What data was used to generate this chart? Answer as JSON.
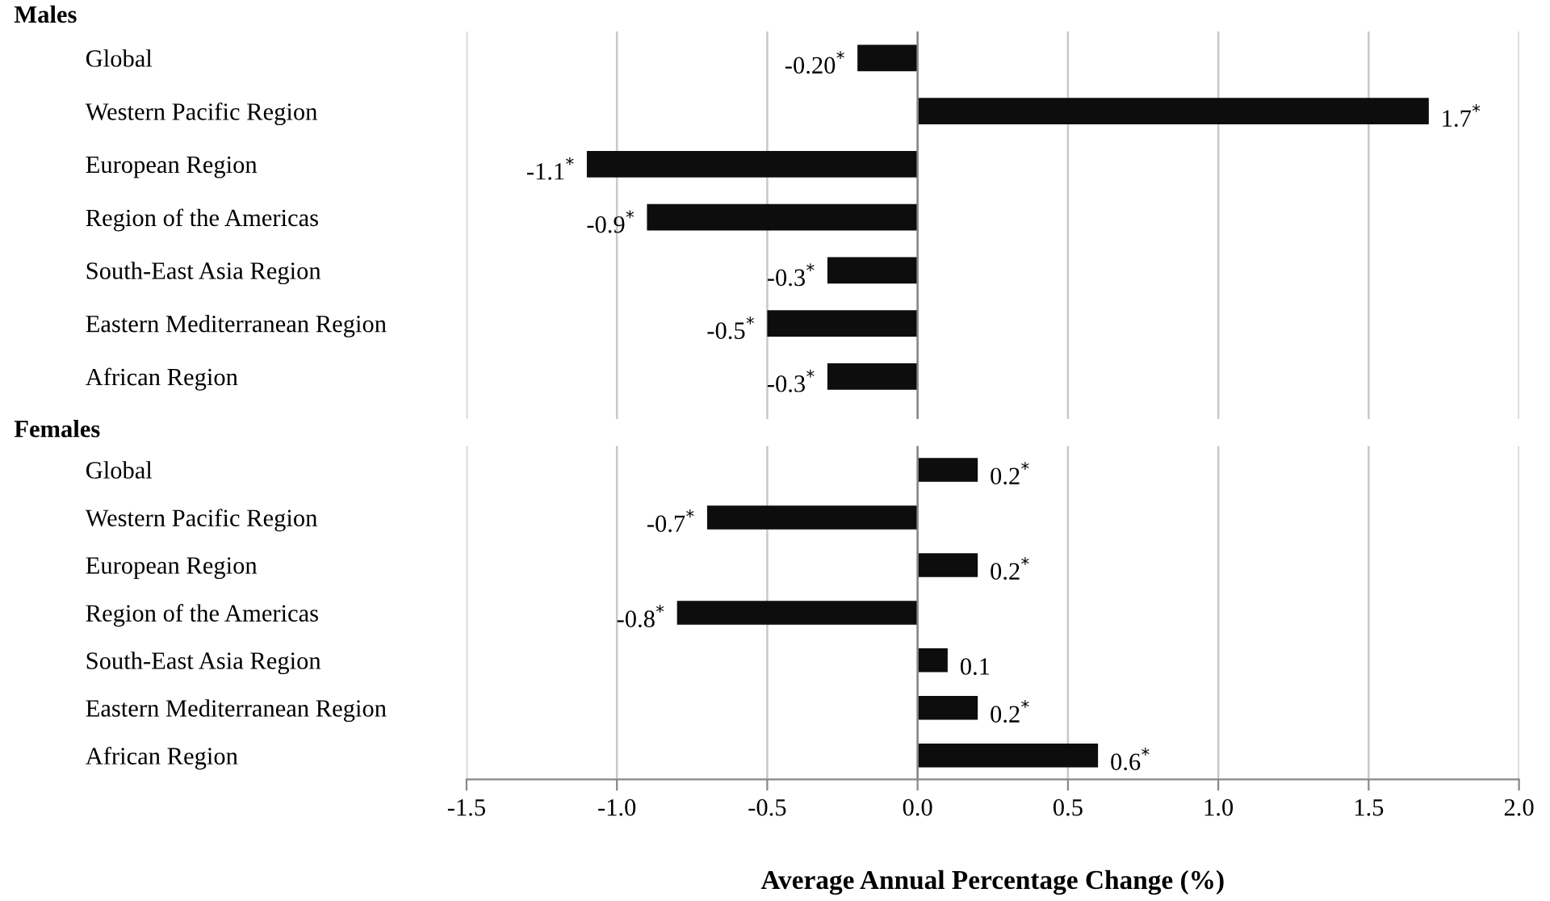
{
  "chart_data": [
    {
      "type": "bar",
      "orientation": "horizontal",
      "title": "Males",
      "categories": [
        "Global",
        "Western Pacific Region",
        "European Region",
        "Region of the Americas",
        "South-East Asia Region",
        "Eastern Mediterranean Region",
        "African Region"
      ],
      "values": [
        -0.2,
        1.7,
        -1.1,
        -0.9,
        -0.3,
        -0.5,
        -0.3
      ],
      "value_labels": [
        "-0.20$^{*}$",
        "1.7$^{*}$",
        "-1.1$^{*}$",
        "-0.9$^{*}$",
        "-0.3$^{*}$",
        "-0.5$^{*}$",
        "-0.3$^{*}$"
      ],
      "color": "#0d0d0d",
      "xlim": [
        -1.5,
        2.0
      ],
      "xticks": [
        {
          "value": -1.5,
          "label": null
        },
        {
          "value": -1.0,
          "label": null
        },
        {
          "value": -0.5,
          "label": null
        },
        {
          "value": 0.0,
          "label": null
        },
        {
          "value": 0.5,
          "label": null
        },
        {
          "value": 1.0,
          "label": null
        },
        {
          "value": 1.5,
          "label": null
        },
        {
          "value": 2.0,
          "label": null
        }
      ],
      "grid": "x",
      "tick_labels": "y"
    },
    {
      "type": "bar",
      "orientation": "horizontal",
      "title": "Females",
      "xlabel": "Average Annual Percentage Change (%)",
      "categories": [
        "Global",
        "Western Pacific Region",
        "European Region",
        "Region of the Americas",
        "South-East Asia Region",
        "Eastern Mediterranean Region",
        "African Region"
      ],
      "values": [
        0.2,
        -0.7,
        0.2,
        -0.8,
        0.1,
        0.2,
        0.6
      ],
      "value_labels": [
        "0.2$^{*}$",
        "-0.7$^{*}$",
        "0.2$^{*}$",
        "-0.8$^{*}$",
        "0.1",
        "0.2$^{*}$",
        "0.6$^{*}$"
      ],
      "color": "#0d0d0d",
      "xlim": [
        -1.5,
        2.0
      ],
      "xticks": [
        {
          "value": -1.5,
          "label": "-1.5"
        },
        {
          "value": -1.0,
          "label": "-1.0"
        },
        {
          "value": -0.5,
          "label": "-0.5"
        },
        {
          "value": 0.0,
          "label": "0.0"
        },
        {
          "value": 0.5,
          "label": "0.5"
        },
        {
          "value": 1.0,
          "label": "1.0"
        },
        {
          "value": 1.5,
          "label": "1.5"
        },
        {
          "value": 2.0,
          "label": "2.0"
        }
      ],
      "grid": "x"
    }
  ]
}
